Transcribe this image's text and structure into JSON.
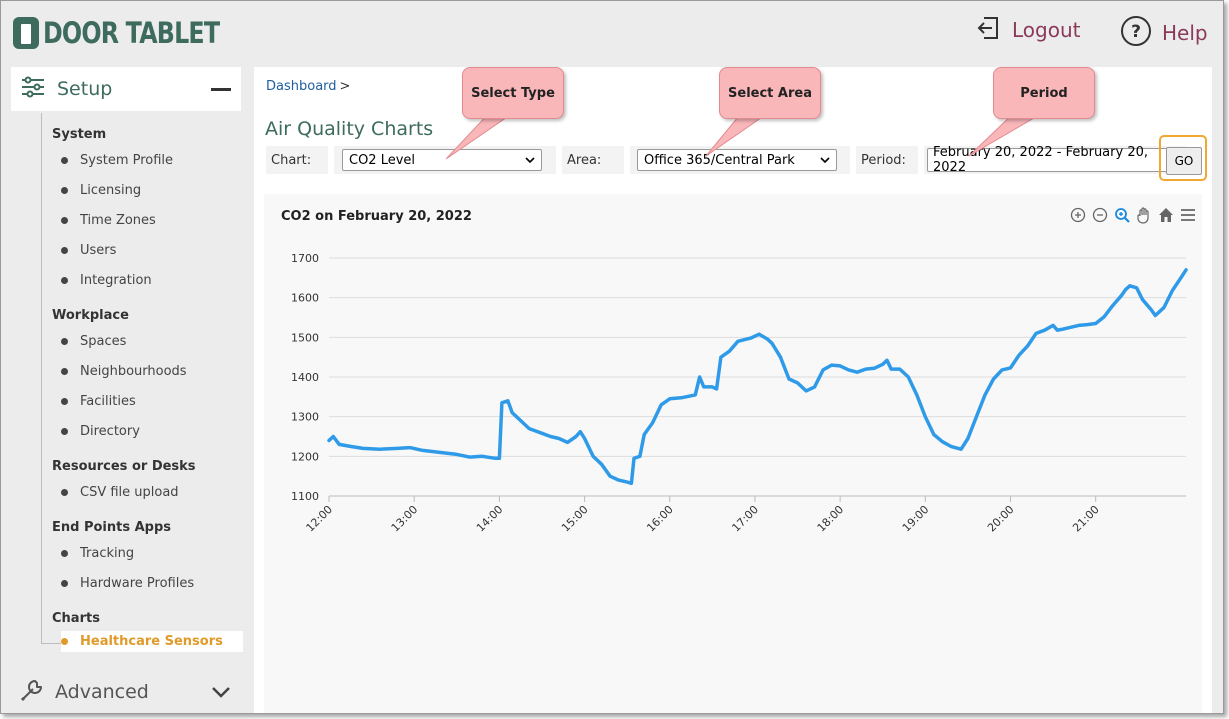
{
  "header": {
    "brand": "DOOR TABLET",
    "logout_label": "Logout",
    "help_label": "Help"
  },
  "sidebar": {
    "setup_label": "Setup",
    "sections": [
      {
        "title": "System",
        "items": [
          "System Profile",
          "Licensing",
          "Time Zones",
          "Users",
          "Integration"
        ]
      },
      {
        "title": "Workplace",
        "items": [
          "Spaces",
          "Neighbourhoods",
          "Facilities",
          "Directory"
        ]
      },
      {
        "title": "Resources or Desks",
        "items": [
          "CSV file upload"
        ]
      },
      {
        "title": "End Points Apps",
        "items": [
          "Tracking",
          "Hardware Profiles"
        ]
      },
      {
        "title": "Charts",
        "items": [
          "Healthcare Sensors"
        ]
      }
    ],
    "active_item": "Healthcare Sensors",
    "advanced_label": "Advanced"
  },
  "breadcrumb": {
    "link": "Dashboard",
    "separator": ">"
  },
  "page": {
    "title": "Air Quality Charts"
  },
  "filters": {
    "chart_label": "Chart:",
    "chart_value": "CO2 Level",
    "area_label": "Area:",
    "area_value": "Office 365/Central Park",
    "period_label": "Period:",
    "period_value": "February 20, 2022 - February 20, 2022",
    "go_label": "GO"
  },
  "callouts": [
    "Select Type",
    "Select Area",
    "Period"
  ],
  "colors": {
    "brand": "#3d6b5e",
    "accent": "#8b3a5a",
    "series": "#2f9be8",
    "active": "#e09a2a",
    "highlight": "#f0a830"
  },
  "chart_data": {
    "type": "line",
    "title": "CO2 on February 20, 2022",
    "xlabel": "",
    "ylabel": "",
    "ylim": [
      1100,
      1700
    ],
    "yticks": [
      1100,
      1200,
      1300,
      1400,
      1500,
      1600,
      1700
    ],
    "xlim": [
      12.0,
      21.67
    ],
    "xticks": [
      "12:00",
      "13:00",
      "14:00",
      "15:00",
      "16:00",
      "17:00",
      "18:00",
      "19:00",
      "20:00",
      "21:00"
    ],
    "grid": true,
    "series": [
      {
        "values": [
          [
            12.0,
            1240
          ],
          [
            12.05,
            1250
          ],
          [
            12.12,
            1230
          ],
          [
            12.25,
            1225
          ],
          [
            12.4,
            1220
          ],
          [
            12.6,
            1218
          ],
          [
            12.8,
            1220
          ],
          [
            12.95,
            1222
          ],
          [
            13.1,
            1215
          ],
          [
            13.3,
            1210
          ],
          [
            13.5,
            1205
          ],
          [
            13.65,
            1198
          ],
          [
            13.8,
            1200
          ],
          [
            13.95,
            1195
          ],
          [
            14.0,
            1195
          ],
          [
            14.03,
            1335
          ],
          [
            14.1,
            1340
          ],
          [
            14.15,
            1310
          ],
          [
            14.25,
            1290
          ],
          [
            14.35,
            1270
          ],
          [
            14.5,
            1258
          ],
          [
            14.6,
            1250
          ],
          [
            14.7,
            1245
          ],
          [
            14.8,
            1235
          ],
          [
            14.9,
            1250
          ],
          [
            14.95,
            1262
          ],
          [
            15.0,
            1245
          ],
          [
            15.1,
            1200
          ],
          [
            15.2,
            1180
          ],
          [
            15.3,
            1150
          ],
          [
            15.4,
            1140
          ],
          [
            15.5,
            1135
          ],
          [
            15.55,
            1132
          ],
          [
            15.58,
            1195
          ],
          [
            15.65,
            1200
          ],
          [
            15.7,
            1255
          ],
          [
            15.8,
            1285
          ],
          [
            15.9,
            1330
          ],
          [
            16.0,
            1345
          ],
          [
            16.15,
            1348
          ],
          [
            16.3,
            1355
          ],
          [
            16.35,
            1400
          ],
          [
            16.4,
            1375
          ],
          [
            16.5,
            1375
          ],
          [
            16.55,
            1370
          ],
          [
            16.6,
            1450
          ],
          [
            16.7,
            1465
          ],
          [
            16.8,
            1490
          ],
          [
            16.95,
            1498
          ],
          [
            17.05,
            1508
          ],
          [
            17.15,
            1495
          ],
          [
            17.2,
            1485
          ],
          [
            17.3,
            1450
          ],
          [
            17.4,
            1395
          ],
          [
            17.5,
            1385
          ],
          [
            17.6,
            1365
          ],
          [
            17.7,
            1375
          ],
          [
            17.8,
            1418
          ],
          [
            17.9,
            1430
          ],
          [
            18.0,
            1428
          ],
          [
            18.1,
            1418
          ],
          [
            18.2,
            1412
          ],
          [
            18.3,
            1420
          ],
          [
            18.4,
            1422
          ],
          [
            18.5,
            1432
          ],
          [
            18.55,
            1442
          ],
          [
            18.6,
            1420
          ],
          [
            18.7,
            1420
          ],
          [
            18.8,
            1400
          ],
          [
            18.9,
            1355
          ],
          [
            19.0,
            1300
          ],
          [
            19.1,
            1255
          ],
          [
            19.2,
            1237
          ],
          [
            19.3,
            1225
          ],
          [
            19.42,
            1218
          ],
          [
            19.5,
            1245
          ],
          [
            19.6,
            1300
          ],
          [
            19.7,
            1355
          ],
          [
            19.8,
            1395
          ],
          [
            19.9,
            1418
          ],
          [
            20.0,
            1423
          ],
          [
            20.1,
            1455
          ],
          [
            20.2,
            1478
          ],
          [
            20.3,
            1510
          ],
          [
            20.4,
            1518
          ],
          [
            20.5,
            1530
          ],
          [
            20.55,
            1518
          ],
          [
            20.6,
            1520
          ],
          [
            20.7,
            1525
          ],
          [
            20.8,
            1530
          ],
          [
            20.9,
            1532
          ],
          [
            21.0,
            1535
          ],
          [
            21.1,
            1552
          ],
          [
            21.2,
            1580
          ],
          [
            21.3,
            1605
          ],
          [
            21.35,
            1620
          ],
          [
            21.4,
            1630
          ],
          [
            21.48,
            1625
          ],
          [
            21.55,
            1595
          ],
          [
            21.65,
            1570
          ],
          [
            21.7,
            1555
          ],
          [
            21.8,
            1575
          ],
          [
            21.9,
            1618
          ],
          [
            22.0,
            1650
          ],
          [
            22.06,
            1670
          ]
        ]
      }
    ]
  }
}
